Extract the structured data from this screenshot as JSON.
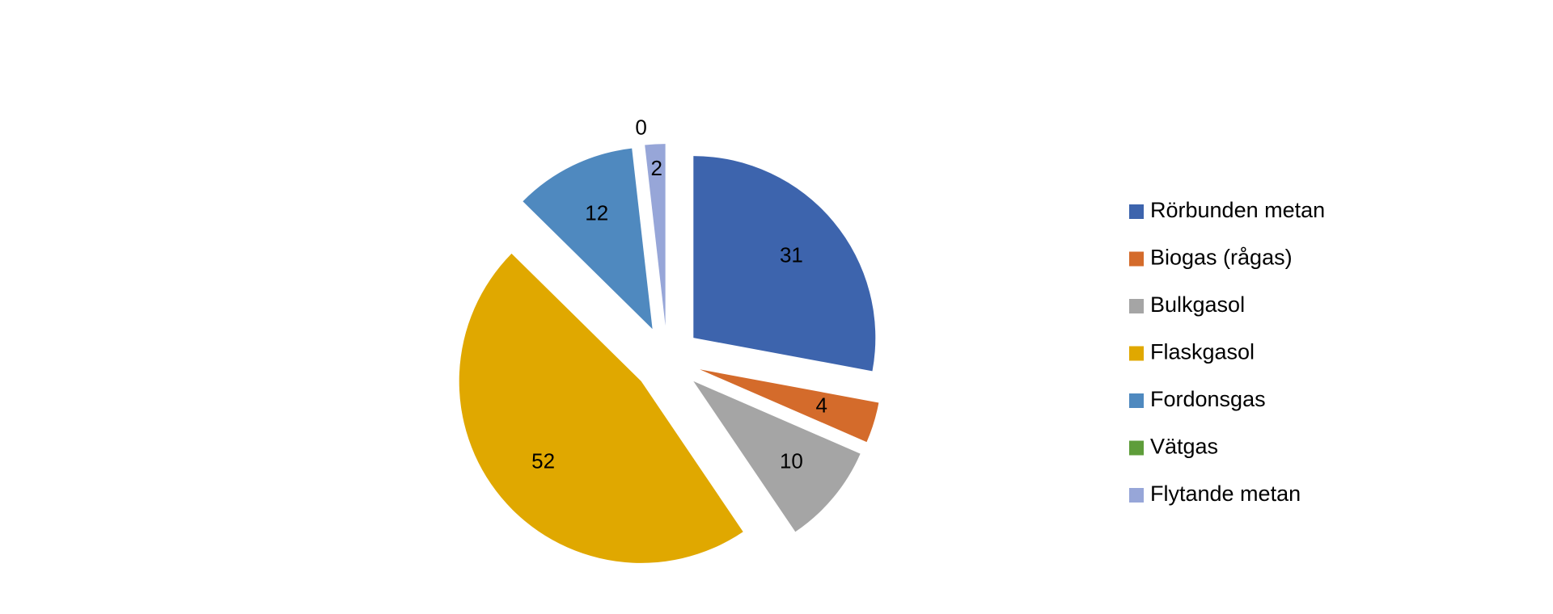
{
  "chart_data": {
    "type": "pie",
    "categories": [
      "Rörbunden metan",
      "Biogas (rågas)",
      "Bulkgasol",
      "Flaskgasol",
      "Fordonsgas",
      "Vätgas",
      "Flytande metan"
    ],
    "values": [
      31,
      4,
      10,
      52,
      12,
      0,
      2
    ],
    "colors": [
      "#3d64ad",
      "#d46b2b",
      "#a5a5a5",
      "#e0a800",
      "#4f89bf",
      "#5e9d3a",
      "#97a6d8"
    ],
    "legend": "right"
  }
}
